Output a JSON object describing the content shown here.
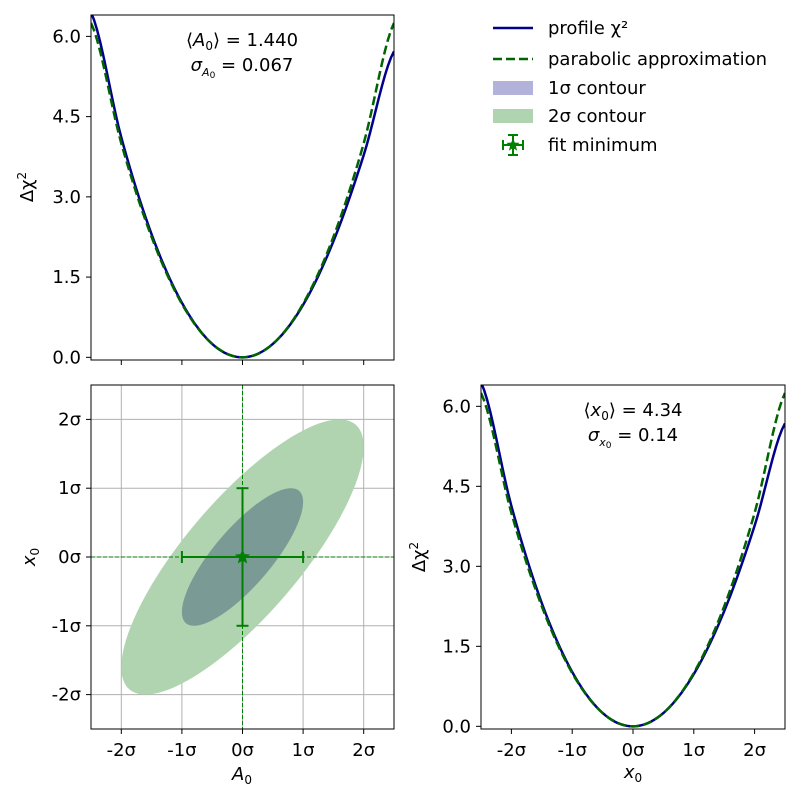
{
  "colors": {
    "profile": "#00008b",
    "parabola": "#006400",
    "contour1": "#b2b2da",
    "contour2": "#b0d4b0",
    "minimum": "#008000",
    "grid": "#b0b0b0"
  },
  "legend": {
    "placement": "top-right",
    "entries": [
      {
        "label": "profile χ²",
        "style": "line",
        "color": "#00008b"
      },
      {
        "label": "parabolic approximation",
        "style": "dashed",
        "color": "#006400"
      },
      {
        "label": "1σ contour",
        "style": "patch",
        "color": "#b2b2da"
      },
      {
        "label": "2σ contour",
        "style": "patch",
        "color": "#b0d4b0"
      },
      {
        "label": "fit minimum",
        "style": "errorbar-star",
        "color": "#008000"
      }
    ]
  },
  "chart_data": [
    {
      "id": "profile-A0",
      "type": "line",
      "xlabel": "",
      "ylabel": "Δχ²",
      "xlim": [
        -2.5,
        2.5
      ],
      "ylim": [
        -0.05,
        6.4
      ],
      "yticks": [
        0.0,
        1.5,
        3.0,
        4.5,
        6.0
      ],
      "ytick_labels": [
        "0.0",
        "1.5",
        "3.0",
        "4.5",
        "6.0"
      ],
      "annotation": [
        "⟨A₀⟩ = 1.440",
        "σ_A₀ = 0.067"
      ],
      "annotation_lines": [
        "⟨A0⟩ = 1.440",
        "σA0 = 0.067"
      ],
      "series": [
        {
          "name": "profile χ²",
          "style": "solid",
          "x": [
            -2.5,
            -2.0,
            -1.5,
            -1.0,
            -0.5,
            0.0,
            0.5,
            1.0,
            1.5,
            2.0,
            2.5
          ],
          "y": [
            6.45,
            4.11,
            2.3,
            1.02,
            0.25,
            0.0,
            0.25,
            0.98,
            2.17,
            3.78,
            5.72
          ]
        },
        {
          "name": "parabolic approximation",
          "style": "dashed",
          "x": [
            -2.5,
            -2.0,
            -1.5,
            -1.0,
            -0.5,
            0.0,
            0.5,
            1.0,
            1.5,
            2.0,
            2.5
          ],
          "y": [
            6.25,
            4.0,
            2.25,
            1.0,
            0.25,
            0.0,
            0.25,
            1.0,
            2.25,
            4.0,
            6.25
          ]
        }
      ]
    },
    {
      "id": "contour-A0-x0",
      "type": "contour",
      "xlabel": "A₀",
      "ylabel": "x₀",
      "xlim": [
        -2.5,
        2.5
      ],
      "ylim": [
        -2.5,
        2.5
      ],
      "xticks": [
        -2,
        -1,
        0,
        1,
        2
      ],
      "xtick_labels": [
        "-2σ",
        "-1σ",
        "0σ",
        "1σ",
        "2σ"
      ],
      "yticks": [
        -2,
        -1,
        0,
        1,
        2
      ],
      "ytick_labels": [
        "-2σ",
        "-1σ",
        "0σ",
        "1σ",
        "2σ"
      ],
      "grid": true,
      "correlation": 0.8,
      "contours": [
        {
          "name": "2σ contour",
          "level": 2
        },
        {
          "name": "1σ contour",
          "level": 1
        }
      ],
      "minimum": {
        "x": 0,
        "y": 0,
        "xerr": 1,
        "yerr": 1
      }
    },
    {
      "id": "profile-x0",
      "type": "line",
      "xlabel": "x₀",
      "ylabel": "Δχ²",
      "xlim": [
        -2.5,
        2.5
      ],
      "ylim": [
        -0.05,
        6.4
      ],
      "xticks": [
        -2,
        -1,
        0,
        1,
        2
      ],
      "xtick_labels": [
        "-2σ",
        "-1σ",
        "0σ",
        "1σ",
        "2σ"
      ],
      "yticks": [
        0.0,
        1.5,
        3.0,
        4.5,
        6.0
      ],
      "ytick_labels": [
        "0.0",
        "1.5",
        "3.0",
        "4.5",
        "6.0"
      ],
      "annotation_lines": [
        "⟨x0⟩ = 4.34",
        "σx0 = 0.14"
      ],
      "series": [
        {
          "name": "profile χ²",
          "style": "solid",
          "x": [
            -2.5,
            -2.0,
            -1.5,
            -1.0,
            -0.5,
            0.0,
            0.5,
            1.0,
            1.5,
            2.0,
            2.5
          ],
          "y": [
            6.45,
            4.13,
            2.31,
            1.02,
            0.25,
            0.0,
            0.25,
            0.98,
            2.16,
            3.76,
            5.68
          ]
        },
        {
          "name": "parabolic approximation",
          "style": "dashed",
          "x": [
            -2.5,
            -2.0,
            -1.5,
            -1.0,
            -0.5,
            0.0,
            0.5,
            1.0,
            1.5,
            2.0,
            2.5
          ],
          "y": [
            6.25,
            4.0,
            2.25,
            1.0,
            0.25,
            0.0,
            0.25,
            1.0,
            2.25,
            4.0,
            6.25
          ]
        }
      ]
    }
  ]
}
